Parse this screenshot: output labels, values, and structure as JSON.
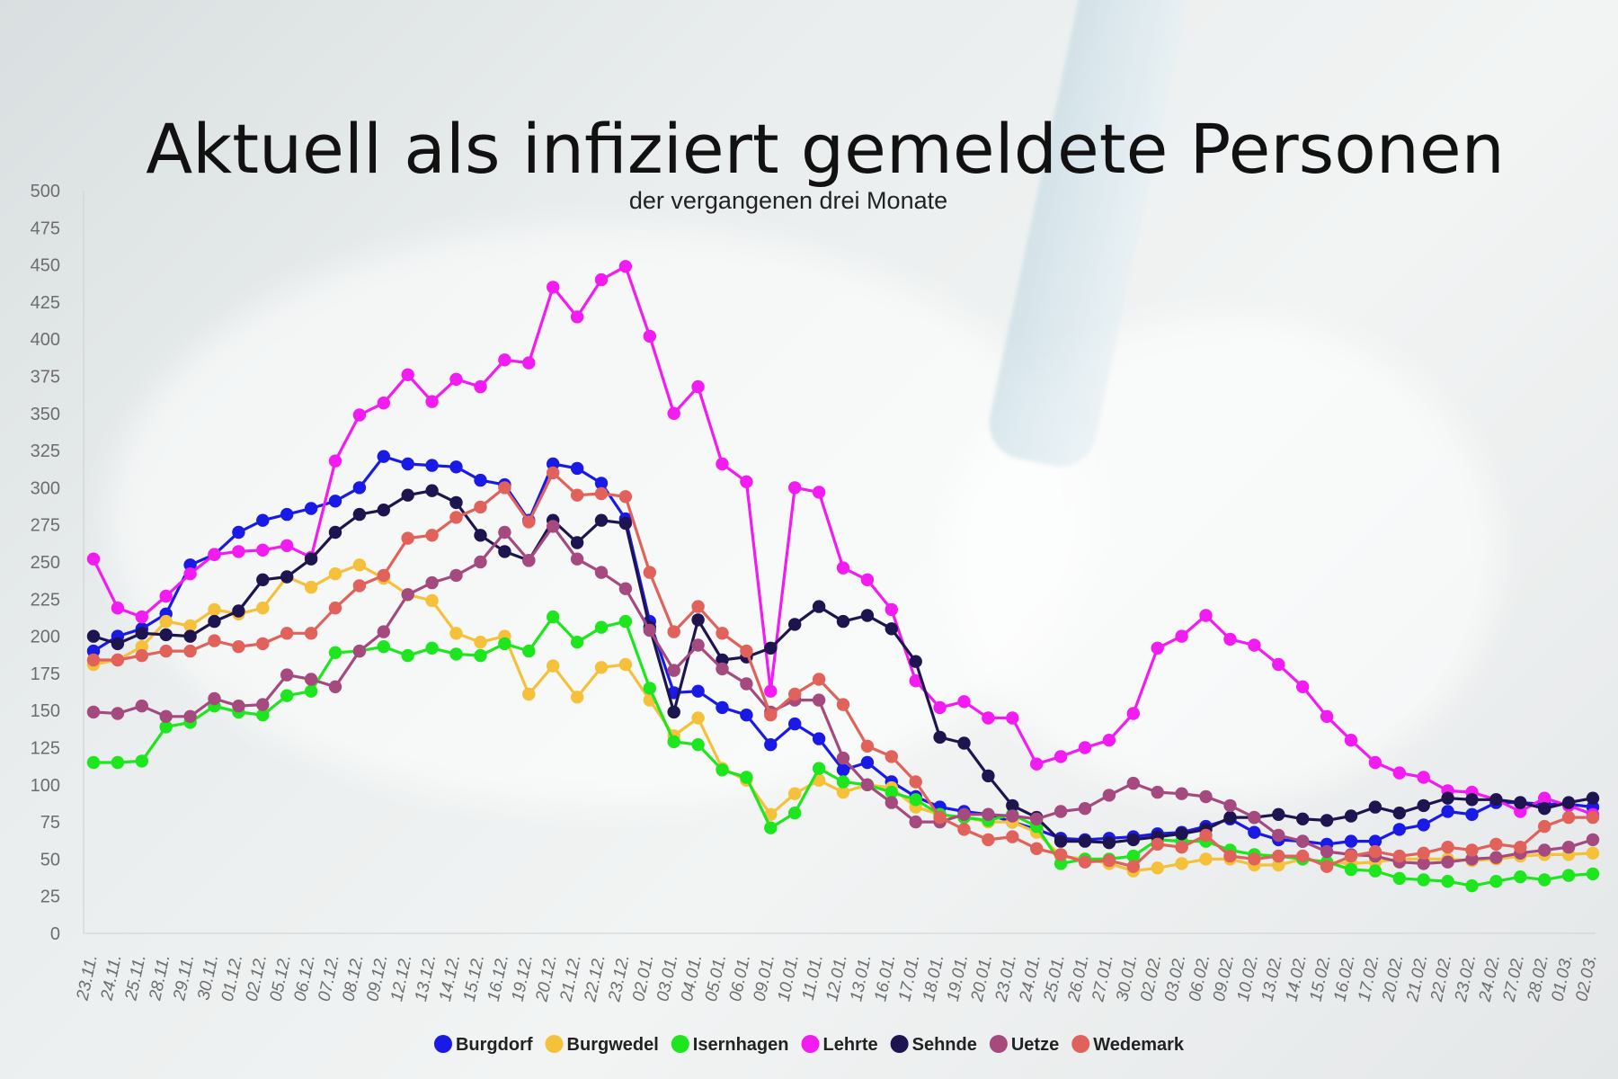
{
  "chart_data": {
    "type": "line",
    "title": "Aktuell als infiziert gemeldete Personen",
    "subtitle": "der vergangenen drei Monate",
    "xlabel": "",
    "ylabel": "",
    "ylim": [
      0,
      500
    ],
    "yticks": [
      0,
      25,
      50,
      75,
      100,
      125,
      150,
      175,
      200,
      225,
      250,
      275,
      300,
      325,
      350,
      375,
      400,
      425,
      450,
      475,
      500
    ],
    "legend_position": "bottom",
    "categories": [
      "23.11.",
      "24.11.",
      "25.11.",
      "28.11.",
      "29.11.",
      "30.11.",
      "01.12.",
      "02.12.",
      "05.12.",
      "06.12.",
      "07.12.",
      "08.12.",
      "09.12.",
      "12.12.",
      "13.12.",
      "14.12.",
      "15.12.",
      "16.12.",
      "19.12.",
      "20.12.",
      "21.12.",
      "22.12.",
      "23.12.",
      "02.01.",
      "03.01.",
      "04.01.",
      "05.01.",
      "06.01.",
      "09.01.",
      "10.01.",
      "11.01.",
      "12.01.",
      "13.01.",
      "16.01.",
      "17.01.",
      "18.01.",
      "19.01.",
      "20.01.",
      "23.01.",
      "24.01.",
      "25.01.",
      "26.01.",
      "27.01.",
      "30.01.",
      "02.02.",
      "03.02.",
      "06.02.",
      "09.02.",
      "10.02.",
      "13.02.",
      "14.02.",
      "15.02.",
      "16.02.",
      "17.02.",
      "20.02.",
      "21.02.",
      "22.02.",
      "23.02.",
      "24.02.",
      "27.02.",
      "28.02.",
      "01.03.",
      "02.03."
    ],
    "series": [
      {
        "name": "Burgdorf",
        "color": "#1a1ae6",
        "values": [
          190,
          200,
          205,
          215,
          248,
          255,
          270,
          278,
          282,
          286,
          291,
          300,
          321,
          316,
          315,
          314,
          305,
          302,
          278,
          316,
          313,
          303,
          279,
          210,
          162,
          163,
          152,
          147,
          127,
          141,
          131,
          110,
          115,
          102,
          92,
          85,
          82,
          80,
          75,
          70,
          64,
          63,
          64,
          65,
          67,
          68,
          72,
          77,
          68,
          63,
          62,
          60,
          62,
          62,
          70,
          73,
          82,
          80,
          88,
          88,
          87,
          87,
          85
        ]
      },
      {
        "name": "Burgwedel",
        "color": "#f5c03a",
        "values": [
          181,
          184,
          193,
          210,
          207,
          218,
          215,
          219,
          240,
          233,
          242,
          248,
          239,
          228,
          224,
          202,
          196,
          200,
          161,
          180,
          159,
          179,
          181,
          157,
          133,
          145,
          111,
          103,
          80,
          94,
          103,
          95,
          100,
          98,
          85,
          80,
          78,
          75,
          75,
          68,
          52,
          50,
          47,
          42,
          44,
          47,
          50,
          50,
          46,
          46,
          50,
          48,
          47,
          48,
          50,
          50,
          50,
          49,
          50,
          52,
          53,
          53,
          54
        ]
      },
      {
        "name": "Isernhagen",
        "color": "#1ee61e",
        "values": [
          115,
          115,
          116,
          139,
          142,
          153,
          149,
          147,
          160,
          163,
          189,
          190,
          193,
          187,
          192,
          188,
          187,
          195,
          190,
          213,
          196,
          206,
          210,
          165,
          129,
          127,
          110,
          105,
          71,
          81,
          111,
          102,
          100,
          95,
          90,
          80,
          78,
          76,
          80,
          72,
          47,
          50,
          50,
          52,
          63,
          62,
          62,
          56,
          53,
          52,
          50,
          48,
          43,
          42,
          37,
          36,
          35,
          32,
          35,
          38,
          36,
          39,
          40
        ]
      },
      {
        "name": "Lehrte",
        "color": "#f21bf2",
        "values": [
          252,
          219,
          213,
          227,
          242,
          255,
          257,
          258,
          261,
          253,
          318,
          349,
          357,
          376,
          358,
          373,
          368,
          386,
          384,
          435,
          415,
          440,
          449,
          402,
          350,
          368,
          316,
          304,
          163,
          300,
          297,
          246,
          238,
          218,
          170,
          152,
          156,
          145,
          145,
          114,
          119,
          125,
          130,
          148,
          192,
          200,
          214,
          198,
          194,
          181,
          166,
          146,
          130,
          115,
          108,
          105,
          96,
          95,
          90,
          82,
          91,
          86,
          80
        ]
      },
      {
        "name": "Sehnde",
        "color": "#1e1450",
        "values": [
          200,
          195,
          202,
          201,
          200,
          210,
          217,
          238,
          240,
          252,
          270,
          282,
          285,
          295,
          298,
          290,
          268,
          257,
          251,
          278,
          263,
          278,
          276,
          206,
          149,
          211,
          184,
          186,
          192,
          208,
          220,
          210,
          214,
          205,
          183,
          132,
          128,
          106,
          86,
          78,
          62,
          62,
          61,
          63,
          65,
          67,
          70,
          78,
          78,
          80,
          77,
          76,
          79,
          85,
          81,
          86,
          91,
          90,
          90,
          88,
          84,
          88,
          91
        ]
      },
      {
        "name": "Uetze",
        "color": "#a44a7e",
        "values": [
          149,
          148,
          153,
          146,
          146,
          158,
          153,
          154,
          174,
          171,
          166,
          190,
          203,
          228,
          236,
          241,
          250,
          270,
          251,
          274,
          252,
          243,
          232,
          204,
          177,
          194,
          178,
          168,
          149,
          157,
          157,
          118,
          100,
          88,
          75,
          75,
          80,
          80,
          79,
          77,
          82,
          84,
          93,
          101,
          95,
          94,
          92,
          86,
          78,
          66,
          62,
          55,
          53,
          52,
          48,
          47,
          48,
          50,
          51,
          54,
          56,
          58,
          63
        ]
      },
      {
        "name": "Wedemark",
        "color": "#e0625a",
        "values": [
          184,
          184,
          187,
          190,
          190,
          197,
          193,
          195,
          202,
          202,
          219,
          234,
          241,
          266,
          268,
          280,
          287,
          300,
          277,
          310,
          295,
          296,
          294,
          243,
          203,
          220,
          202,
          190,
          147,
          161,
          171,
          154,
          126,
          119,
          102,
          78,
          70,
          63,
          65,
          57,
          53,
          48,
          49,
          45,
          60,
          58,
          66,
          52,
          50,
          52,
          52,
          45,
          52,
          55,
          52,
          54,
          58,
          56,
          60,
          58,
          72,
          78,
          78
        ]
      }
    ]
  }
}
